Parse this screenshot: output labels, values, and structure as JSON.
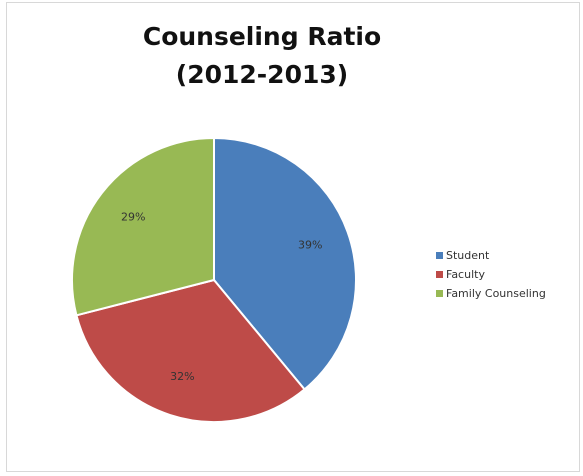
{
  "chart_data": {
    "type": "pie",
    "title_line1": "Counseling Ratio",
    "title_line2": "(2012-2013)",
    "slices": [
      {
        "label": "Student",
        "value": 39,
        "display": "39%",
        "color": "#4a7ebb"
      },
      {
        "label": "Faculty",
        "value": 32,
        "display": "32%",
        "color": "#be4b48"
      },
      {
        "label": "Family Counseling",
        "value": 29,
        "display": "29%",
        "color": "#98b954"
      }
    ],
    "legend_position": "right",
    "start_angle_deg": 0,
    "direction": "clockwise"
  }
}
